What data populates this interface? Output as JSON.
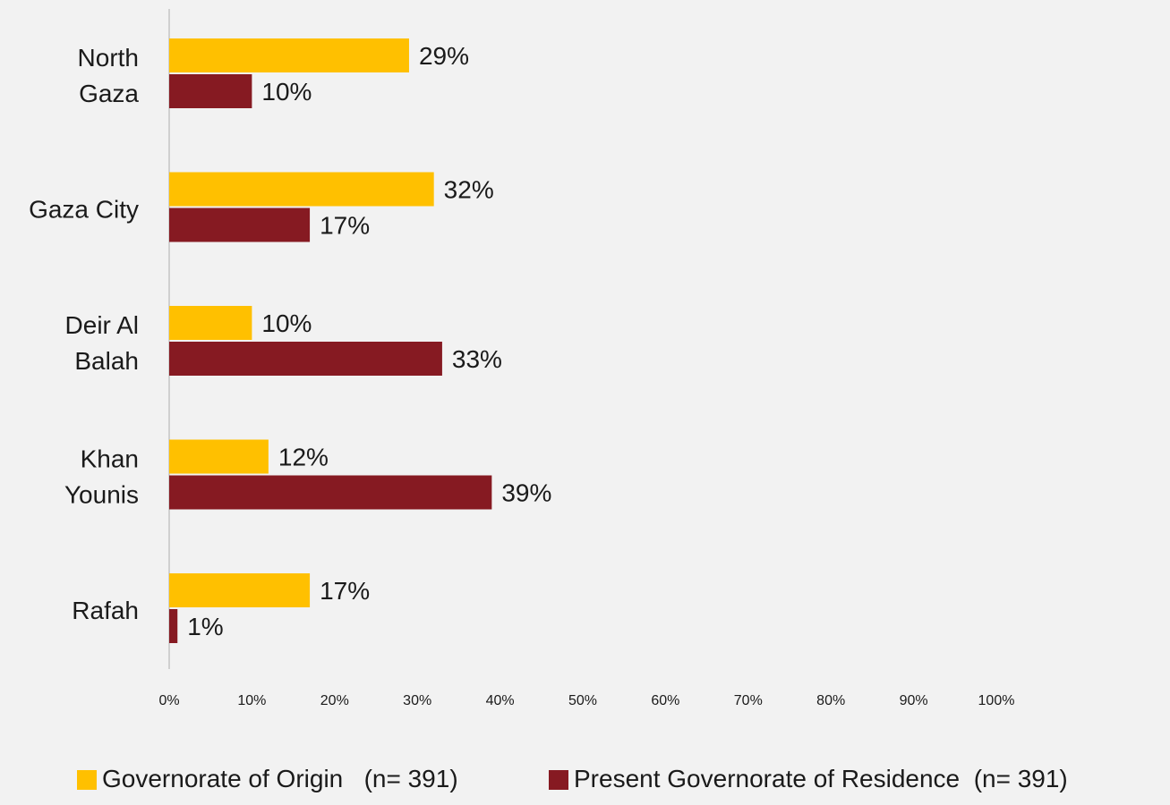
{
  "chart_data": {
    "type": "bar",
    "orientation": "horizontal",
    "categories": [
      [
        "North",
        "Gaza"
      ],
      [
        "Gaza City"
      ],
      [
        "Deir Al",
        "Balah"
      ],
      [
        "Khan",
        "Younis"
      ],
      [
        "Rafah"
      ]
    ],
    "series": [
      {
        "name": "Governorate of Origin   (n= 391)",
        "color": "#FFC000",
        "values": [
          29,
          32,
          10,
          12,
          17
        ],
        "labels": [
          "29%",
          "32%",
          "10%",
          "12%",
          "17%"
        ]
      },
      {
        "name": "Present Governorate of Residence  (n= 391)",
        "color": "#861A22",
        "values": [
          10,
          17,
          33,
          39,
          1
        ],
        "labels": [
          "10%",
          "17%",
          "33%",
          "39%",
          "1%"
        ]
      }
    ],
    "xlim": [
      0,
      100
    ],
    "x_ticks": [
      "0%",
      "10%",
      "20%",
      "30%",
      "40%",
      "50%",
      "60%",
      "70%",
      "80%",
      "90%",
      "100%"
    ],
    "grid": false,
    "legend_position": "bottom"
  }
}
